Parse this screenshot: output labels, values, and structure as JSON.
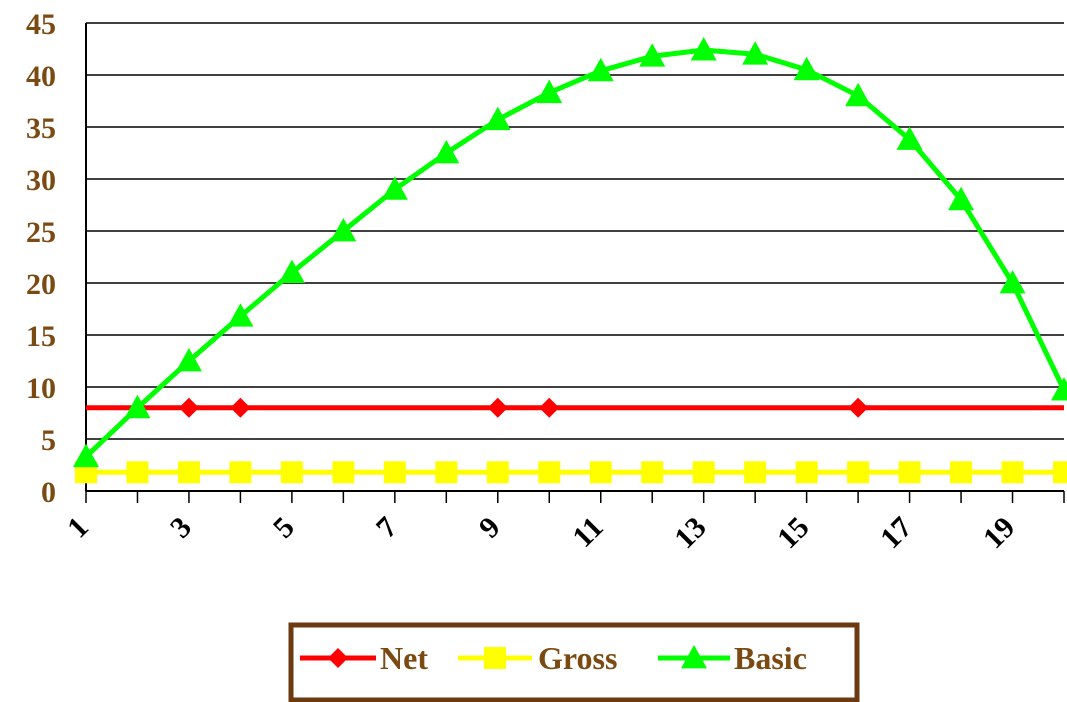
{
  "chart_data": {
    "type": "line",
    "title": "",
    "xlabel": "",
    "ylabel": "",
    "ylim": [
      0,
      45
    ],
    "yticks": [
      0,
      5,
      10,
      15,
      20,
      25,
      30,
      35,
      40,
      45
    ],
    "x": [
      1,
      2,
      3,
      4,
      5,
      6,
      7,
      8,
      9,
      10,
      11,
      12,
      13,
      14,
      15,
      16,
      17,
      18,
      19,
      20
    ],
    "xtick_labels": [
      "1",
      "3",
      "5",
      "7",
      "9",
      "11",
      "13",
      "15",
      "17",
      "19"
    ],
    "grid": "horizontal",
    "legend_position": "bottom",
    "series": [
      {
        "name": "Net",
        "color": "#FF0000",
        "marker": "diamond",
        "marked_points": [
          3,
          4,
          9,
          10,
          16
        ],
        "values": [
          8,
          8,
          8,
          8,
          8,
          8,
          8,
          8,
          8,
          8,
          8,
          8,
          8,
          8,
          8,
          8,
          8,
          8,
          8,
          8
        ]
      },
      {
        "name": "Gross",
        "color": "#FFFF00",
        "marker": "square",
        "marked_points": [
          1,
          2,
          3,
          4,
          5,
          6,
          7,
          8,
          9,
          10,
          11,
          12,
          13,
          14,
          15,
          16,
          17,
          18,
          19,
          20
        ],
        "values": [
          1.8,
          1.8,
          1.8,
          1.8,
          1.8,
          1.8,
          1.8,
          1.8,
          1.8,
          1.8,
          1.8,
          1.8,
          1.8,
          1.8,
          1.8,
          1.8,
          1.8,
          1.8,
          1.8,
          1.8
        ]
      },
      {
        "name": "Basic",
        "color": "#00FF00",
        "marker": "triangle",
        "marked_points": [
          1,
          2,
          3,
          4,
          5,
          6,
          7,
          8,
          9,
          10,
          11,
          12,
          13,
          14,
          15,
          16,
          17,
          18,
          19,
          20
        ],
        "values": [
          3.3,
          8,
          12.5,
          16.8,
          21,
          25,
          29,
          32.5,
          35.7,
          38.3,
          40.4,
          41.8,
          42.4,
          42,
          40.5,
          38,
          33.8,
          28,
          20,
          9.7
        ]
      }
    ]
  },
  "colors": {
    "axis_text": "#7B4A12",
    "gridline": "#000000",
    "legend_border": "#6B3A10"
  }
}
